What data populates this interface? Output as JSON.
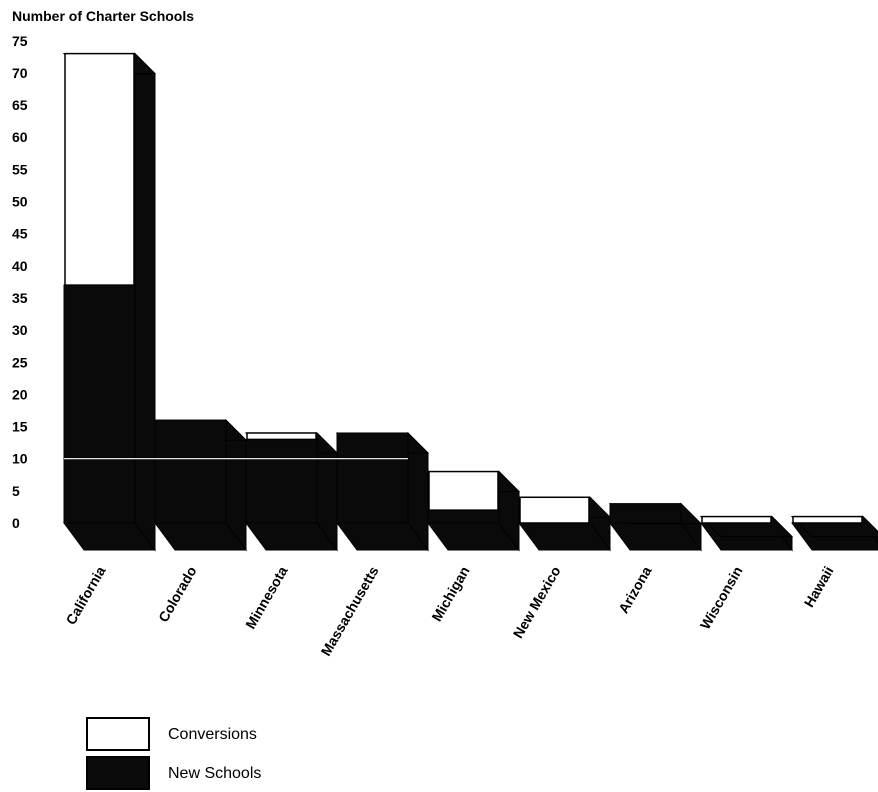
{
  "chart_data": {
    "type": "bar",
    "stacked": true,
    "title": "Number of Charter Schools",
    "categories": [
      "California",
      "Colorado",
      "Minnesota",
      "Massachusetts",
      "Michigan",
      "New Mexico",
      "Arizona",
      "Wisconsin",
      "Hawaii"
    ],
    "series": [
      {
        "name": "New Schools",
        "values": [
          37,
          16,
          13,
          14,
          2,
          0,
          3,
          0,
          0
        ],
        "color": "#0a0a0a"
      },
      {
        "name": "Conversions",
        "values": [
          36,
          0,
          1,
          0,
          6,
          4,
          0,
          1,
          1
        ],
        "color": "#ffffff"
      }
    ],
    "ylim": [
      0,
      75
    ],
    "yticks": [
      0,
      5,
      10,
      15,
      20,
      25,
      30,
      35,
      40,
      45,
      50,
      55,
      60,
      65,
      70,
      75
    ],
    "grid": false,
    "legend_position": "bottom-left",
    "three_d": true
  },
  "legend": {
    "conversions_label": "Conversions",
    "new_schools_label": "New Schools"
  }
}
